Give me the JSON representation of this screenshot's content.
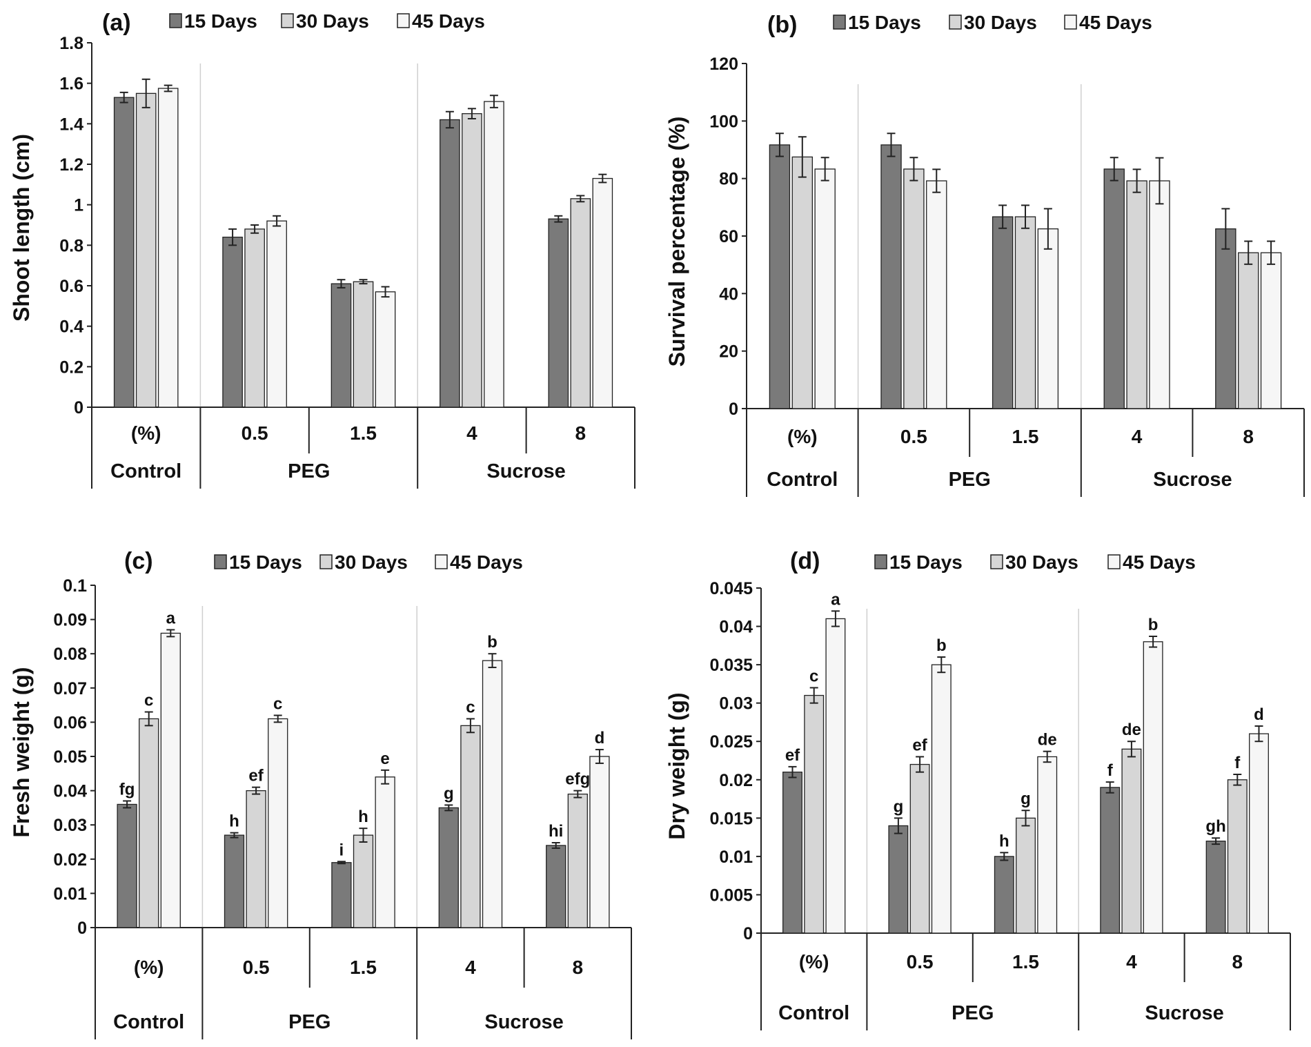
{
  "colors": {
    "day15": "#7a7a7a",
    "day30": "#d6d6d6",
    "day45": "#f6f6f6",
    "axis": "#222222",
    "separator": "#cfcfcf"
  },
  "legend": [
    "15 Days",
    "30 Days",
    "45 Days"
  ],
  "groups": [
    {
      "label": "Control",
      "cols": [
        "(%)"
      ]
    },
    {
      "label": "PEG",
      "cols": [
        "0.5",
        "1.5"
      ]
    },
    {
      "label": "Sucrose",
      "cols": [
        "4",
        "8"
      ]
    }
  ],
  "chart_data": [
    {
      "panel": "(a)",
      "type": "bar",
      "ylabel": "Shoot length (cm)",
      "ylim": [
        0,
        1.8
      ],
      "ticks": [
        "0",
        "0.2",
        "0.4",
        "0.6",
        "0.8",
        "1",
        "1.2",
        "1.4",
        "1.6",
        "1.8"
      ],
      "categories": [
        "(%)",
        "0.5",
        "1.5",
        "4",
        "8"
      ],
      "series": [
        {
          "name": "15 Days",
          "values": [
            1.53,
            0.84,
            0.61,
            1.42,
            0.93
          ],
          "errors": [
            0.025,
            0.04,
            0.02,
            0.04,
            0.015
          ],
          "letters": []
        },
        {
          "name": "30 Days",
          "values": [
            1.55,
            0.88,
            0.62,
            1.45,
            1.03
          ],
          "errors": [
            0.07,
            0.02,
            0.01,
            0.025,
            0.015
          ],
          "letters": []
        },
        {
          "name": "45 Days",
          "values": [
            1.575,
            0.92,
            0.57,
            1.51,
            1.13
          ],
          "errors": [
            0.015,
            0.025,
            0.025,
            0.03,
            0.02
          ],
          "letters": []
        }
      ]
    },
    {
      "panel": "(b)",
      "type": "bar",
      "ylabel": "Survival percentage (%)",
      "ylim": [
        0,
        120
      ],
      "ticks": [
        "0",
        "20",
        "40",
        "60",
        "80",
        "100",
        "120"
      ],
      "categories": [
        "(%)",
        "0.5",
        "1.5",
        "4",
        "8"
      ],
      "series": [
        {
          "name": "15 Days",
          "values": [
            91.7,
            91.7,
            66.7,
            83.3,
            62.5
          ],
          "errors": [
            4,
            4,
            4,
            4,
            7
          ],
          "letters": []
        },
        {
          "name": "30 Days",
          "values": [
            87.5,
            83.3,
            66.7,
            79.2,
            54.2
          ],
          "errors": [
            7,
            4,
            4,
            4,
            4
          ],
          "letters": []
        },
        {
          "name": "45 Days",
          "values": [
            83.3,
            79.2,
            62.5,
            79.2,
            54.2
          ],
          "errors": [
            4,
            4,
            7,
            8,
            4
          ],
          "letters": []
        }
      ]
    },
    {
      "panel": "(c)",
      "type": "bar",
      "ylabel": "Fresh weight (g)",
      "ylim": [
        0,
        0.1
      ],
      "ticks": [
        "0",
        "0.01",
        "0.02",
        "0.03",
        "0.04",
        "0.05",
        "0.06",
        "0.07",
        "0.08",
        "0.09",
        "0.1"
      ],
      "categories": [
        "(%)",
        "0.5",
        "1.5",
        "4",
        "8"
      ],
      "series": [
        {
          "name": "15 Days",
          "values": [
            0.036,
            0.027,
            0.019,
            0.035,
            0.024
          ],
          "errors": [
            0.001,
            0.0007,
            0.0003,
            0.0008,
            0.0008
          ],
          "letters": [
            "fg",
            "h",
            "i",
            "g",
            "hi"
          ]
        },
        {
          "name": "30 Days",
          "values": [
            0.061,
            0.04,
            0.027,
            0.059,
            0.039
          ],
          "errors": [
            0.002,
            0.001,
            0.002,
            0.002,
            0.001
          ],
          "letters": [
            "c",
            "ef",
            "h",
            "c",
            "efg"
          ]
        },
        {
          "name": "45 Days",
          "values": [
            0.086,
            0.061,
            0.044,
            0.078,
            0.05
          ],
          "errors": [
            0.001,
            0.001,
            0.002,
            0.002,
            0.002
          ],
          "letters": [
            "a",
            "c",
            "e",
            "b",
            "d"
          ]
        }
      ]
    },
    {
      "panel": "(d)",
      "type": "bar",
      "ylabel": "Dry weight (g)",
      "ylim": [
        0,
        0.045
      ],
      "ticks": [
        "0",
        "0.005",
        "0.01",
        "0.015",
        "0.02",
        "0.025",
        "0.03",
        "0.035",
        "0.04",
        "0.045"
      ],
      "categories": [
        "(%)",
        "0.5",
        "1.5",
        "4",
        "8"
      ],
      "series": [
        {
          "name": "15 Days",
          "values": [
            0.021,
            0.014,
            0.01,
            0.019,
            0.012
          ],
          "errors": [
            0.0007,
            0.001,
            0.0005,
            0.0007,
            0.0004
          ],
          "letters": [
            "ef",
            "g",
            "h",
            "f",
            "gh"
          ]
        },
        {
          "name": "30 Days",
          "values": [
            0.031,
            0.022,
            0.015,
            0.024,
            0.02
          ],
          "errors": [
            0.001,
            0.001,
            0.001,
            0.001,
            0.0007
          ],
          "letters": [
            "c",
            "ef",
            "g",
            "de",
            "f"
          ]
        },
        {
          "name": "45 Days",
          "values": [
            0.041,
            0.035,
            0.023,
            0.038,
            0.026
          ],
          "errors": [
            0.001,
            0.001,
            0.0007,
            0.0007,
            0.001
          ],
          "letters": [
            "a",
            "b",
            "de",
            "b",
            "d"
          ]
        }
      ]
    }
  ]
}
